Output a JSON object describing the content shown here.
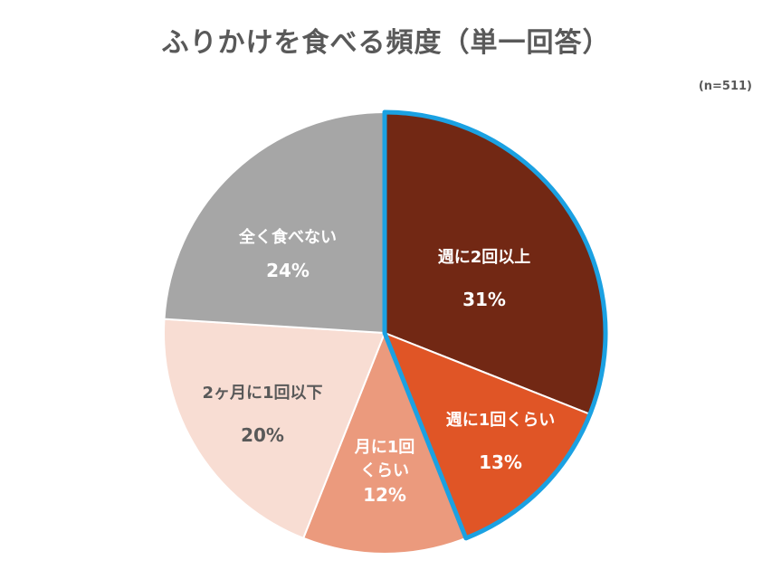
{
  "chart_data": {
    "type": "pie",
    "title": "ふりかけを食べる頻度（単一回答）",
    "sample_note": "(n=511)",
    "slices": [
      {
        "label_lines": [
          "週に2回以上"
        ],
        "value": 31,
        "value_text": "31%",
        "color": "#722814",
        "text_color": "#ffffff"
      },
      {
        "label_lines": [
          "週に1回くらい"
        ],
        "value": 13,
        "value_text": "13%",
        "color": "#E05526",
        "text_color": "#ffffff"
      },
      {
        "label_lines": [
          "月に1回",
          "くらい"
        ],
        "value": 12,
        "value_text": "12%",
        "color": "#EB9A7D",
        "text_color": "#ffffff"
      },
      {
        "label_lines": [
          "2ヶ月に1回以下"
        ],
        "value": 20,
        "value_text": "20%",
        "color": "#F8DDD3",
        "text_color": "#595959"
      },
      {
        "label_lines": [
          "全く食べない"
        ],
        "value": 24,
        "value_text": "24%",
        "color": "#A6A6A6",
        "text_color": "#ffffff"
      }
    ],
    "highlight_color": "#1BA1E2",
    "highlighted_slices": [
      "週に2回以上",
      "週に1回くらい"
    ]
  }
}
